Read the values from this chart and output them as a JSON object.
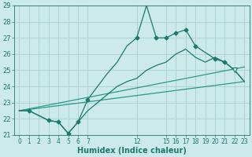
{
  "bg_color": "#cdeaea",
  "grid_color": "#aacfcf",
  "line_color": "#1a7a6e",
  "line_color_light": "#2a9988",
  "xlabel": "Humidex (Indice chaleur)",
  "ylim": [
    21,
    29
  ],
  "xlim": [
    -0.5,
    23.5
  ],
  "yticks": [
    21,
    22,
    23,
    24,
    25,
    26,
    27,
    28,
    29
  ],
  "xtick_positions": [
    0,
    1,
    2,
    3,
    4,
    5,
    6,
    7,
    12,
    15,
    16,
    17,
    18,
    19,
    20,
    21,
    22,
    23
  ],
  "xtick_labels": [
    "0",
    "1",
    "2",
    "3",
    "4",
    "5",
    "6",
    "7",
    "12",
    "15",
    "16",
    "17",
    "18",
    "19",
    "20",
    "21",
    "22",
    "23"
  ],
  "curve1_x": [
    0,
    1,
    2,
    3,
    4,
    5,
    6,
    7,
    8,
    9,
    10,
    11,
    12,
    13,
    14,
    15,
    16,
    17,
    18,
    19,
    20,
    21,
    22,
    23
  ],
  "curve1_y": [
    22.5,
    22.5,
    22.2,
    21.9,
    21.8,
    21.1,
    21.8,
    23.2,
    24.0,
    24.8,
    25.5,
    26.5,
    27.0,
    29.0,
    27.0,
    27.0,
    27.3,
    27.5,
    26.5,
    26.1,
    25.7,
    25.5,
    25.0,
    24.3
  ],
  "curve2_x": [
    0,
    1,
    2,
    3,
    4,
    5,
    6,
    7,
    8,
    9,
    10,
    11,
    12,
    13,
    14,
    15,
    16,
    17,
    18,
    19,
    20,
    21,
    22,
    23
  ],
  "curve2_y": [
    22.5,
    22.5,
    22.2,
    21.9,
    21.8,
    21.1,
    21.8,
    22.5,
    23.0,
    23.5,
    24.0,
    24.3,
    24.5,
    25.0,
    25.3,
    25.5,
    26.0,
    26.3,
    25.8,
    25.5,
    25.8,
    25.5,
    25.0,
    24.3
  ],
  "line1_x": [
    0,
    23
  ],
  "line1_y": [
    22.5,
    25.2
  ],
  "line2_x": [
    0,
    23
  ],
  "line2_y": [
    22.5,
    24.3
  ],
  "markers1_x": [
    1,
    3,
    4,
    5,
    6,
    7,
    12,
    14,
    15,
    16,
    17,
    18,
    20,
    21
  ],
  "markers1_y": [
    22.5,
    21.9,
    21.8,
    21.1,
    21.8,
    23.2,
    27.0,
    27.0,
    27.0,
    27.3,
    27.5,
    26.5,
    25.7,
    25.5
  ],
  "tri_x": 22,
  "tri_y": 25.0,
  "dot_x": 23,
  "dot_y": 24.3
}
